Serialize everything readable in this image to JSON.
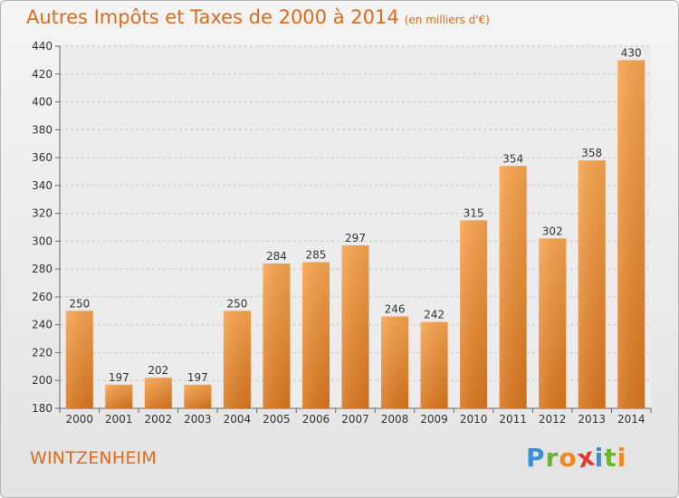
{
  "chart_data": {
    "type": "bar",
    "title": "Autres Impôts et Taxes de 2000 à 2014",
    "subtitle": "(en milliers d'€)",
    "categories": [
      "2000",
      "2001",
      "2002",
      "2003",
      "2004",
      "2005",
      "2006",
      "2007",
      "2008",
      "2009",
      "2010",
      "2011",
      "2012",
      "2013",
      "2014"
    ],
    "values": [
      250,
      197,
      202,
      197,
      250,
      284,
      285,
      297,
      246,
      242,
      315,
      354,
      302,
      358,
      430
    ],
    "ylim": [
      180,
      440
    ],
    "yticks": [
      180,
      200,
      220,
      240,
      260,
      280,
      300,
      320,
      340,
      360,
      380,
      400,
      420,
      440
    ],
    "grid": true,
    "colors": {
      "bar_light": "#f7a450",
      "bar_dark": "#d8761f",
      "title": "#e06a1a"
    }
  },
  "footer": {
    "city": "WINTZENHEIM",
    "brand": [
      "P",
      "r",
      "o",
      "x",
      "i",
      "t",
      "i"
    ],
    "brand_colors": [
      "#3a8fd6",
      "#6bb52f",
      "#f08a1c",
      "#e23b2e",
      "#3a8fd6",
      "#6bb52f",
      "#f08a1c"
    ]
  }
}
